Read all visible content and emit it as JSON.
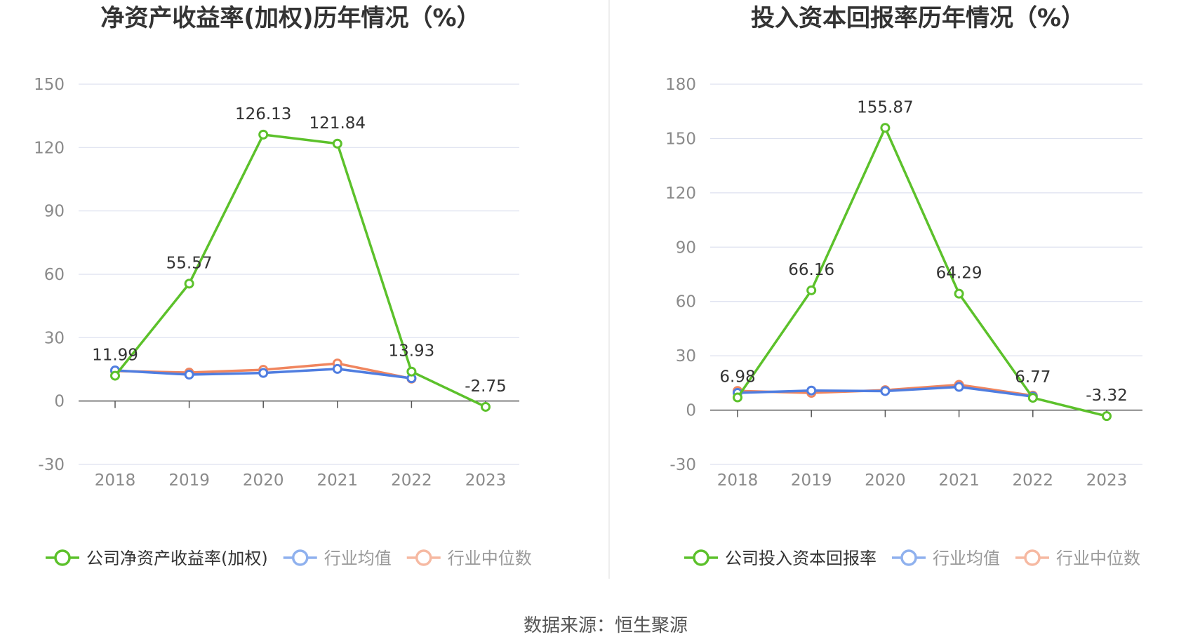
{
  "source": "数据来源：恒生聚源",
  "colors": {
    "company": "#5cc12b",
    "mean": "#4f7de0",
    "median": "#f0855e",
    "mean_legend": "#8fb1ee",
    "median_legend": "#f6b9a2",
    "grid": "#dde1ef",
    "axis": "#555555"
  },
  "chart_data": [
    {
      "type": "line",
      "title": "净资产收益率(加权)历年情况（%）",
      "categories": [
        "2018",
        "2019",
        "2020",
        "2021",
        "2022",
        "2023"
      ],
      "ylim": [
        -30,
        150
      ],
      "yticks": [
        "150",
        "120",
        "90",
        "60",
        "30",
        "0",
        "-30"
      ],
      "series": [
        {
          "name": "公司净资产收益率(加权)",
          "values": [
            11.99,
            55.57,
            126.13,
            121.84,
            13.93,
            -2.75
          ],
          "labels": [
            "11.99",
            "55.57",
            "126.13",
            "121.84",
            "13.93",
            "-2.75"
          ]
        },
        {
          "name": "行业均值",
          "values": [
            14.5,
            12.5,
            13.3,
            15.2,
            10.8,
            null
          ]
        },
        {
          "name": "行业中位数",
          "values": [
            14.2,
            13.5,
            14.8,
            17.8,
            10.6,
            null
          ]
        }
      ],
      "legend": "bottom"
    },
    {
      "type": "line",
      "title": "投入资本回报率历年情况（%）",
      "categories": [
        "2018",
        "2019",
        "2020",
        "2021",
        "2022",
        "2023"
      ],
      "ylim": [
        -30,
        180
      ],
      "yticks": [
        "180",
        "150",
        "120",
        "90",
        "60",
        "30",
        "0",
        "-30"
      ],
      "series": [
        {
          "name": "公司投入资本回报率",
          "values": [
            6.98,
            66.16,
            155.87,
            64.29,
            6.77,
            -3.32
          ],
          "labels": [
            "6.98",
            "66.16",
            "155.87",
            "64.29",
            "6.77",
            "-3.32"
          ]
        },
        {
          "name": "行业均值",
          "values": [
            9.5,
            10.8,
            10.5,
            12.8,
            7.5,
            null
          ]
        },
        {
          "name": "行业中位数",
          "values": [
            10.6,
            9.5,
            11.0,
            14.0,
            8.0,
            null
          ]
        }
      ],
      "legend": "bottom"
    }
  ]
}
